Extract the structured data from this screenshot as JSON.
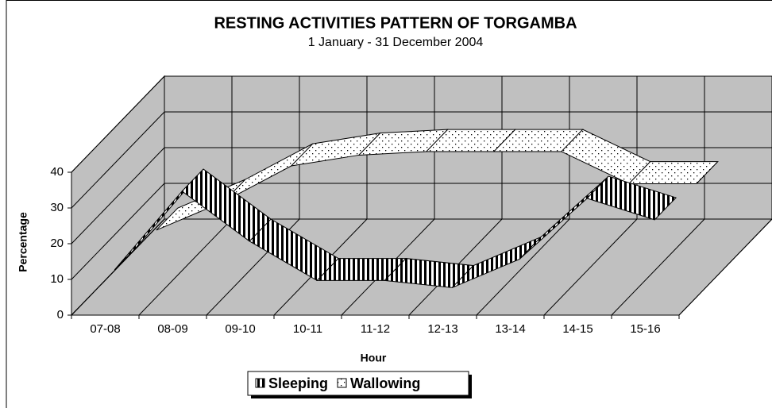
{
  "chart_data": {
    "type": "line3d",
    "title": "RESTING ACTIVITIES PATTERN OF TORGAMBA",
    "subtitle": "1 January - 31  December  2004",
    "x_label": "Hour",
    "y_label": "Percentage",
    "categories": [
      "07-08",
      "08-09",
      "09-10",
      "10-11",
      "11-12",
      "12-13",
      "13-14",
      "14-15",
      "15-16"
    ],
    "series": [
      {
        "name": "Sleeping",
        "color": "#000000",
        "values": [
          10,
          32,
          18,
          7,
          7,
          5,
          13,
          30,
          24
        ]
      },
      {
        "name": "Wallowing",
        "color": "#ffffff",
        "values": [
          9,
          17,
          27,
          30,
          31,
          31,
          31,
          22,
          22
        ]
      }
    ],
    "ylim": [
      0,
      40
    ],
    "yticks": [
      0,
      10,
      20,
      30,
      40
    ],
    "grid": true
  }
}
